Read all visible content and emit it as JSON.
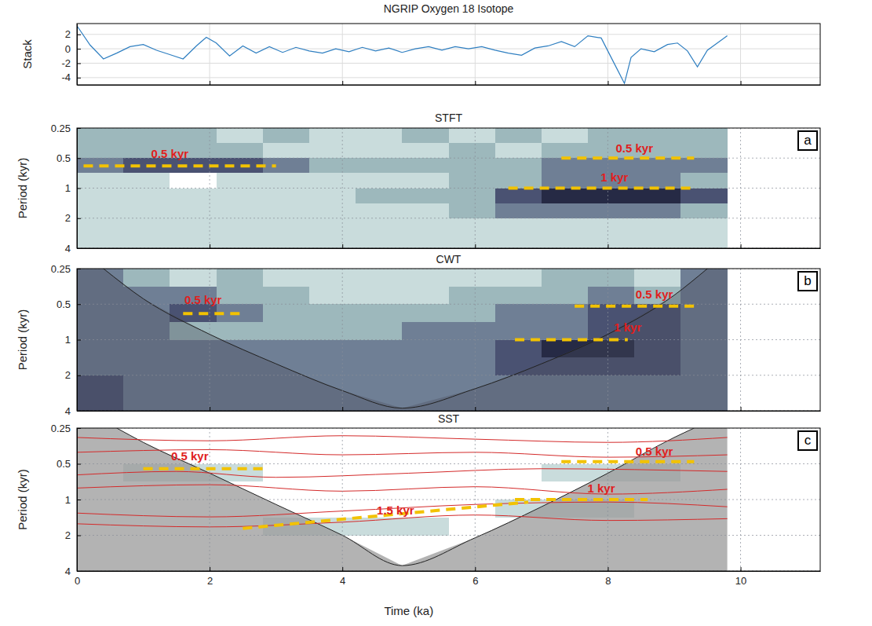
{
  "chart_data": [
    {
      "type": "line",
      "title": "NGRIP Oxygen 18 Isotope",
      "ylabel": "Stack",
      "x": [
        0,
        0.2,
        0.4,
        0.6,
        0.8,
        1.0,
        1.2,
        1.4,
        1.6,
        1.8,
        1.95,
        2.1,
        2.3,
        2.5,
        2.7,
        2.9,
        3.1,
        3.3,
        3.5,
        3.7,
        3.9,
        4.1,
        4.3,
        4.5,
        4.7,
        4.9,
        5.1,
        5.3,
        5.5,
        5.7,
        5.9,
        6.1,
        6.3,
        6.5,
        6.7,
        6.9,
        7.1,
        7.3,
        7.5,
        7.7,
        7.9,
        8.05,
        8.15,
        8.25,
        8.35,
        8.5,
        8.7,
        8.9,
        9.05,
        9.2,
        9.35,
        9.5,
        9.65,
        9.8
      ],
      "values": [
        3.2,
        0.5,
        -1.4,
        -0.6,
        0.3,
        0.6,
        -0.2,
        -0.8,
        -1.4,
        0.4,
        1.6,
        0.8,
        -1.0,
        0.4,
        -0.6,
        0.3,
        -0.5,
        0.2,
        -0.3,
        -0.6,
        0,
        -0.4,
        0.2,
        -0.3,
        0.1,
        -0.5,
        0,
        0.3,
        -0.2,
        0.3,
        0,
        0.3,
        -0.2,
        -0.6,
        -0.9,
        0.1,
        0.4,
        1.0,
        0.3,
        1.8,
        1.5,
        -1.2,
        -3.0,
        -4.8,
        -1.2,
        0,
        -0.4,
        0.6,
        0.8,
        -0.3,
        -2.5,
        -0.2,
        0.8,
        1.8
      ],
      "color": "#2f7fc1",
      "xlim": [
        0,
        11.2
      ],
      "xticks": [
        0,
        2,
        4,
        6,
        8,
        10
      ],
      "ylim": [
        -5,
        3.5
      ],
      "yticks": [
        -4,
        -2,
        0,
        2
      ],
      "grid": true,
      "tick_labels": "y"
    },
    {
      "type": "heatmap",
      "title": "STFT",
      "ylabel": "Period (kyr)",
      "panel_label": "a",
      "log": "y",
      "xlim": [
        0,
        11.2
      ],
      "xticks": [
        0,
        2,
        4,
        6,
        8,
        10
      ],
      "ylim": [
        0.25,
        4
      ],
      "yticks": [
        0.25,
        0.5,
        1,
        2,
        4
      ],
      "grid": true,
      "tick_labels": "y",
      "cells": {
        "clim": [
          0,
          5
        ],
        "x_edges": [
          0,
          0.7,
          1.4,
          2.1,
          2.8,
          3.5,
          4.2,
          4.9,
          5.6,
          6.3,
          7.0,
          7.7,
          8.4,
          9.1,
          9.8
        ],
        "period_edges": [
          0.25,
          0.354,
          0.5,
          0.707,
          1,
          1.414,
          2,
          2.828,
          4
        ],
        "values": [
          [
            2,
            2,
            2,
            1,
            2,
            1,
            1,
            2,
            1,
            2,
            1,
            2,
            2,
            2
          ],
          [
            2,
            2,
            2,
            2,
            1,
            1,
            1,
            1,
            2,
            1,
            2,
            2,
            2,
            2
          ],
          [
            3,
            4,
            4,
            4,
            3,
            2,
            2,
            2,
            2,
            2,
            3,
            3,
            3,
            3
          ],
          [
            1,
            1,
            0,
            1,
            1,
            1,
            1,
            1,
            2,
            2,
            3,
            3,
            3,
            2
          ],
          [
            1,
            1,
            1,
            1,
            1,
            1,
            2,
            2,
            2,
            4,
            5,
            5,
            5,
            4
          ],
          [
            1,
            1,
            1,
            1,
            1,
            1,
            1,
            1,
            2,
            3,
            3,
            3,
            3,
            2
          ],
          [
            1,
            1,
            1,
            1,
            1,
            1,
            1,
            1,
            1,
            1,
            1,
            1,
            1,
            1
          ],
          [
            1,
            1,
            1,
            1,
            1,
            1,
            1,
            1,
            1,
            1,
            1,
            1,
            1,
            1
          ]
        ]
      },
      "annotations": [
        {
          "label": "0.5 kyr",
          "x": [
            0.1,
            3.0
          ],
          "period": [
            0.6,
            0.6
          ],
          "label_x": 1.4,
          "label_period": 0.46
        },
        {
          "label": "0.5 kyr",
          "x": [
            7.3,
            9.3
          ],
          "period": [
            0.5,
            0.5
          ],
          "label_x": 8.4,
          "label_period": 0.41
        },
        {
          "label": "1 kyr",
          "x": [
            6.5,
            9.3
          ],
          "period": [
            1.0,
            1.0
          ],
          "label_x": 8.1,
          "label_period": 0.8
        }
      ]
    },
    {
      "type": "heatmap",
      "title": "CWT",
      "ylabel": "Period (kyr)",
      "panel_label": "b",
      "log": "y",
      "xlim": [
        0,
        11.2
      ],
      "xticks": [
        0,
        2,
        4,
        6,
        8,
        10
      ],
      "ylim": [
        0.25,
        4
      ],
      "yticks": [
        0.25,
        0.5,
        1,
        2,
        4
      ],
      "grid": true,
      "tick_labels": "y",
      "cells": {
        "clim": [
          0,
          5
        ],
        "x_edges": [
          0,
          0.7,
          1.4,
          2.1,
          2.8,
          3.5,
          4.2,
          4.9,
          5.6,
          6.3,
          7.0,
          7.7,
          8.4,
          9.1,
          9.8
        ],
        "period_edges": [
          0.25,
          0.354,
          0.5,
          0.707,
          1,
          1.414,
          2,
          2.828,
          4
        ],
        "values": [
          [
            3,
            2,
            1,
            2,
            1,
            1,
            1,
            1,
            1,
            1,
            2,
            2,
            1,
            3
          ],
          [
            3,
            3,
            3,
            2,
            2,
            1,
            1,
            1,
            2,
            2,
            2,
            3,
            2,
            3
          ],
          [
            3,
            3,
            4,
            3,
            2,
            2,
            2,
            2,
            2,
            3,
            3,
            4,
            4,
            3
          ],
          [
            3,
            3,
            2,
            2,
            2,
            2,
            2,
            3,
            3,
            3,
            3,
            4,
            4,
            3
          ],
          [
            3,
            3,
            3,
            3,
            3,
            3,
            3,
            3,
            3,
            4,
            5,
            5,
            4,
            3
          ],
          [
            3,
            3,
            3,
            3,
            3,
            3,
            3,
            3,
            3,
            4,
            4,
            4,
            4,
            3
          ],
          [
            4,
            3,
            3,
            3,
            3,
            3,
            3,
            3,
            3,
            3,
            3,
            3,
            3,
            3
          ],
          [
            4,
            3,
            3,
            3,
            3,
            3,
            3,
            3,
            3,
            3,
            3,
            3,
            3,
            3
          ]
        ]
      },
      "coi": {
        "x": [
          0.4,
          1,
          2,
          3,
          4,
          4.9,
          6,
          7,
          8,
          9,
          9.5
        ],
        "period": [
          0.25,
          0.45,
          0.9,
          1.6,
          2.7,
          3.8,
          2.6,
          1.6,
          0.9,
          0.42,
          0.25
        ]
      },
      "annotations": [
        {
          "label": "0.5 kyr",
          "x": [
            1.6,
            2.5
          ],
          "period": [
            0.6,
            0.6
          ],
          "label_x": 1.9,
          "label_period": 0.47
        },
        {
          "label": "0.5 kyr",
          "x": [
            7.5,
            9.3
          ],
          "period": [
            0.52,
            0.52
          ],
          "label_x": 8.7,
          "label_period": 0.42
        },
        {
          "label": "1 kyr",
          "x": [
            6.6,
            8.3
          ],
          "period": [
            1.0,
            1.0
          ],
          "label_x": 8.3,
          "label_period": 0.8
        }
      ]
    },
    {
      "type": "heatmap",
      "title": "SST",
      "ylabel": "Period (kyr)",
      "panel_label": "c",
      "xlabel": "Time (ka)",
      "log": "y",
      "xlim": [
        0,
        11.2
      ],
      "xticks": [
        0,
        2,
        4,
        6,
        8,
        10
      ],
      "ylim": [
        0.25,
        4
      ],
      "yticks": [
        0.25,
        0.5,
        1,
        2,
        4
      ],
      "grid": true,
      "tick_labels": true,
      "cells": {
        "clim": [
          0,
          5
        ],
        "x_edges": [
          0,
          0.7,
          1.4,
          2.1,
          2.8,
          3.5,
          4.2,
          4.9,
          5.6,
          6.3,
          7.0,
          7.7,
          8.4,
          9.1,
          9.8
        ],
        "period_edges": [
          0.25,
          0.354,
          0.5,
          0.707,
          1,
          1.414,
          2,
          2.828,
          4
        ],
        "values": [
          [
            0,
            0,
            0,
            0,
            0,
            0,
            0,
            0,
            0,
            0,
            0,
            0,
            0,
            0
          ],
          [
            0,
            0,
            0,
            0,
            0,
            0,
            0,
            0,
            0,
            0,
            0,
            0,
            0,
            0
          ],
          [
            0,
            1,
            1,
            1,
            0,
            0,
            0,
            0,
            0,
            0,
            1,
            1,
            1,
            0
          ],
          [
            0,
            0,
            0,
            0,
            0,
            0,
            0,
            0,
            0,
            0,
            0,
            0,
            0,
            0
          ],
          [
            0,
            0,
            0,
            0,
            0,
            0,
            0,
            0,
            0,
            1,
            1,
            1,
            0,
            0
          ],
          [
            0,
            0,
            0,
            0,
            1,
            1,
            1,
            1,
            0,
            0,
            0,
            0,
            0,
            0
          ],
          [
            0,
            0,
            0,
            0,
            0,
            0,
            0,
            0,
            0,
            0,
            0,
            0,
            0,
            0
          ],
          [
            0,
            0,
            0,
            0,
            0,
            0,
            0,
            0,
            0,
            0,
            0,
            0,
            0,
            0
          ]
        ]
      },
      "coi": {
        "x": [
          0.6,
          1,
          2,
          3,
          4,
          4.9,
          6,
          7,
          8,
          9,
          9.3
        ],
        "period": [
          0.25,
          0.33,
          0.6,
          1.1,
          2.0,
          3.6,
          2.1,
          1.15,
          0.6,
          0.3,
          0.25
        ]
      },
      "ridges": [
        {
          "x": [
            0,
            2,
            4,
            6,
            8,
            9.8
          ],
          "period": [
            0.3,
            0.32,
            0.29,
            0.31,
            0.33,
            0.3
          ]
        },
        {
          "x": [
            0,
            2,
            4,
            6,
            8,
            9.8
          ],
          "period": [
            0.4,
            0.38,
            0.42,
            0.4,
            0.44,
            0.42
          ]
        },
        {
          "x": [
            0,
            1.5,
            3,
            5,
            7,
            9.8
          ],
          "period": [
            0.62,
            0.58,
            0.65,
            0.6,
            0.55,
            0.58
          ]
        },
        {
          "x": [
            0,
            2,
            4,
            6,
            8,
            9.8
          ],
          "period": [
            0.8,
            0.75,
            0.85,
            0.78,
            0.9,
            0.82
          ]
        },
        {
          "x": [
            0,
            2,
            4,
            6,
            8,
            9.8
          ],
          "period": [
            1.3,
            1.4,
            1.25,
            1.1,
            1.05,
            1.15
          ]
        },
        {
          "x": [
            0,
            2,
            4,
            6,
            8,
            9.8
          ],
          "period": [
            1.6,
            1.7,
            1.55,
            1.35,
            1.5,
            1.45
          ]
        }
      ],
      "annotations": [
        {
          "label": "0.5 kyr",
          "x": [
            1.0,
            2.8
          ],
          "period": [
            0.55,
            0.55
          ],
          "label_x": 1.7,
          "label_period": 0.44
        },
        {
          "label": "0.5 kyr",
          "x": [
            7.3,
            9.3
          ],
          "period": [
            0.48,
            0.48
          ],
          "label_x": 8.7,
          "label_period": 0.4
        },
        {
          "label": "1 kyr",
          "x": [
            6.6,
            8.6
          ],
          "period": [
            1.0,
            1.0
          ],
          "label_x": 7.9,
          "label_period": 0.82
        },
        {
          "label": "1.5 kyr",
          "x": [
            2.5,
            6.8
          ],
          "period": [
            1.75,
            1.05
          ],
          "label_x": 4.8,
          "label_period": 1.25
        }
      ]
    }
  ]
}
